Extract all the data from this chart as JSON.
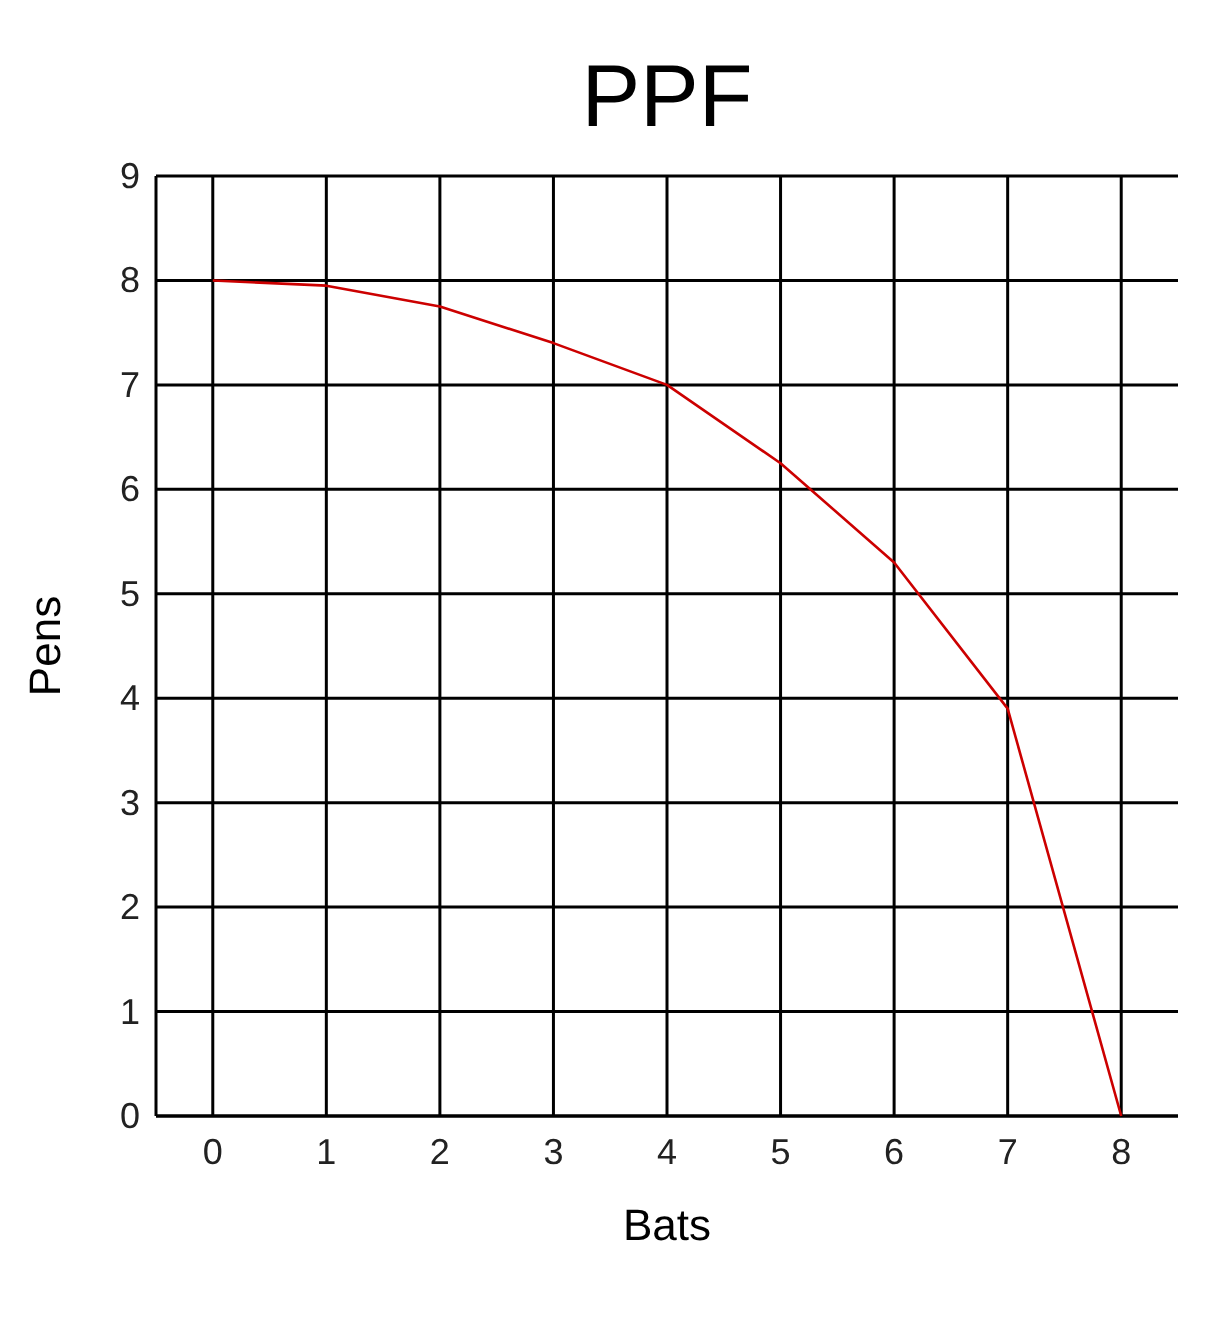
{
  "chart_data": {
    "type": "line",
    "title": "PPF",
    "xlabel": "Bats",
    "ylabel": "Pens",
    "x": [
      0,
      1,
      2,
      3,
      4,
      5,
      6,
      7,
      8
    ],
    "series": [
      {
        "color": "#cc0000",
        "values": [
          8,
          7.95,
          7.75,
          7.4,
          7.0,
          6.25,
          5.3,
          3.9,
          0
        ]
      }
    ],
    "xlim": [
      -0.5,
      8.5
    ],
    "xticks": [
      0,
      1,
      2,
      3,
      4,
      5,
      6,
      7,
      8
    ],
    "ylim": [
      0,
      9
    ],
    "yticks": [
      0,
      1,
      2,
      3,
      4,
      5,
      6,
      7,
      8,
      9
    ],
    "grid": true,
    "marker": "none",
    "line_style": "solid"
  }
}
